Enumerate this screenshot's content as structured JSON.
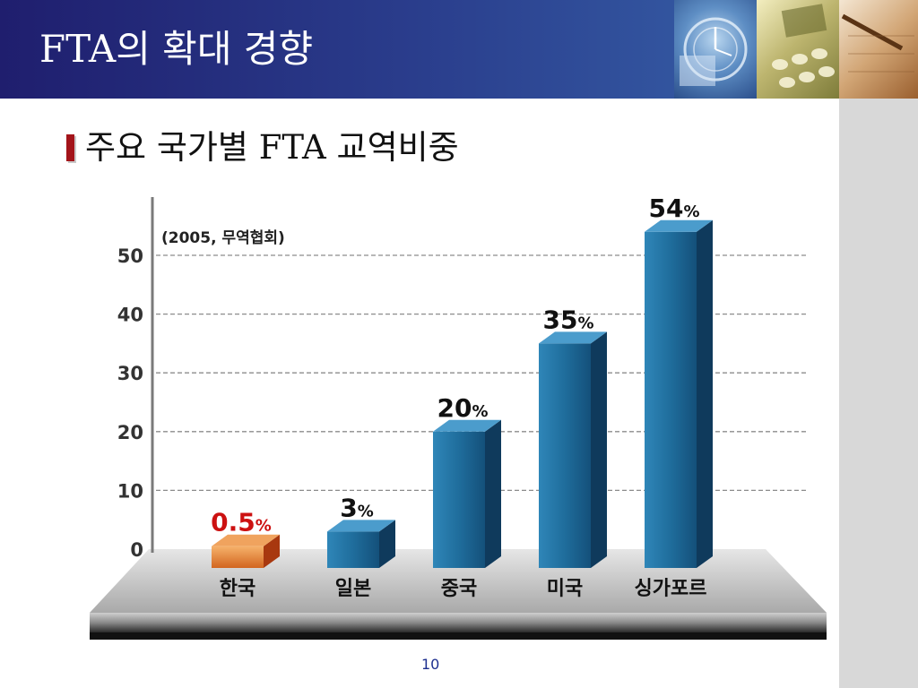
{
  "slide": {
    "title": "FTA의 확대 경향",
    "subtitle": "주요 국가별 FTA 교역비중",
    "page_number": "10"
  },
  "colors": {
    "header_dark": "#1f1e6e",
    "bar_blue": "#1d6a98",
    "highlight_orange": "#e2782d",
    "highlight_label": "#cc1111",
    "bullet": "#a3141a"
  },
  "chart_data": {
    "type": "bar",
    "source_note": "(2005, 무역협회)",
    "categories": [
      "한국",
      "일본",
      "중국",
      "미국",
      "싱가포르"
    ],
    "values": [
      0.5,
      3,
      20,
      35,
      54
    ],
    "value_labels": [
      "0.5",
      "3",
      "20",
      "35",
      "54"
    ],
    "value_suffix": "%",
    "highlight_index": 0,
    "ylim": [
      0,
      50
    ],
    "yticks": [
      "0",
      "10",
      "20",
      "30",
      "40",
      "50"
    ],
    "grid": true
  }
}
